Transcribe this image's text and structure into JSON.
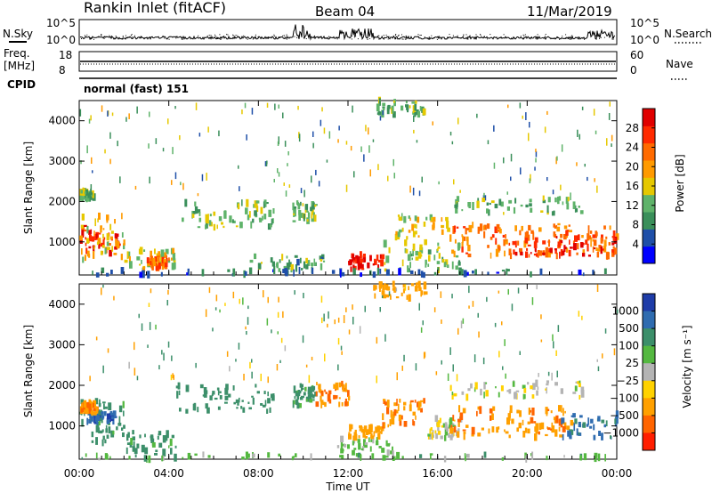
{
  "header": {
    "station": "Rankin Inlet (fitACF)",
    "beam": "Beam 04",
    "date": "11/Mar/2019"
  },
  "sky_panel": {
    "left_label": "N.Sky",
    "right_label": "N.Search",
    "left_ticks": [
      "10^5",
      "10^0"
    ],
    "right_ticks": [
      "10^5",
      "10^0"
    ]
  },
  "freq_panel": {
    "left_label_1": "Freq.",
    "left_label_2": "[MHz]",
    "right_label": "Nave",
    "left_ticks": [
      "18",
      "8"
    ],
    "right_ticks": [
      "60",
      "0"
    ]
  },
  "cpid_panel": {
    "label": "CPID",
    "value": "normal (fast) 151"
  },
  "colors": {
    "power_scale": [
      "#0000ff",
      "#1f4fa8",
      "#3a8f5a",
      "#5fb36a",
      "#e6c800",
      "#ff9a00",
      "#ff6a00",
      "#ff2a00",
      "#e00000"
    ],
    "velocity_scale": [
      "#1e3ca8",
      "#2f6cb0",
      "#3c8f6a",
      "#54b840",
      "#b4b4b4",
      "#ffd200",
      "#ffa000",
      "#ff6400",
      "#ff1e00"
    ]
  },
  "chart_data": [
    {
      "type": "heatmap",
      "quantity": "Power",
      "ylabel": "Slant Range [km]",
      "ylim": [
        180,
        4500
      ],
      "yticks": [
        "1000",
        "2000",
        "3000",
        "4000"
      ],
      "xlim": [
        "00:00",
        "24:00"
      ],
      "colorbar_label": "Power [dB]",
      "colorbar_ticks": [
        "4",
        "8",
        "12",
        "16",
        "20",
        "24",
        "28"
      ],
      "colorbar_range": [
        0,
        32
      ],
      "regions": [
        {
          "t0": 0.0,
          "t1": 1.8,
          "r0": 700,
          "r1": 1400,
          "level": 28
        },
        {
          "t0": 0.0,
          "t1": 2.0,
          "r0": 550,
          "r1": 1650,
          "level": 17
        },
        {
          "t0": 2.0,
          "t1": 4.3,
          "r0": 300,
          "r1": 800,
          "level": 15
        },
        {
          "t0": 3.0,
          "t1": 4.0,
          "r0": 350,
          "r1": 600,
          "level": 24
        },
        {
          "t0": 4.3,
          "t1": 8.7,
          "r0": 1350,
          "r1": 2000,
          "level": 13
        },
        {
          "t0": 9.5,
          "t1": 10.5,
          "r0": 1500,
          "r1": 2000,
          "level": 12
        },
        {
          "t0": 7.5,
          "t1": 11.0,
          "r0": 300,
          "r1": 650,
          "level": 11
        },
        {
          "t0": 12.0,
          "t1": 13.5,
          "r0": 300,
          "r1": 680,
          "level": 29
        },
        {
          "t0": 13.5,
          "t1": 17.0,
          "r0": 300,
          "r1": 1000,
          "level": 13
        },
        {
          "t0": 14.0,
          "t1": 16.5,
          "r0": 1050,
          "r1": 1650,
          "level": 16
        },
        {
          "t0": 16.5,
          "t1": 24.0,
          "r0": 650,
          "r1": 1450,
          "level": 22
        },
        {
          "t0": 18.5,
          "t1": 24.0,
          "r0": 650,
          "r1": 1150,
          "level": 27
        },
        {
          "t0": 16.5,
          "t1": 22.5,
          "r0": 1700,
          "r1": 2100,
          "level": 11
        },
        {
          "t0": 0.0,
          "t1": 24.0,
          "r0": 180,
          "r1": 300,
          "level": 6
        },
        {
          "t0": 0.0,
          "t1": 0.6,
          "r0": 2050,
          "r1": 2300,
          "level": 12
        },
        {
          "t0": 13.0,
          "t1": 15.5,
          "r0": 4150,
          "r1": 4500,
          "level": 12
        }
      ]
    },
    {
      "type": "heatmap",
      "quantity": "Velocity",
      "ylabel": "Slant Range [km]",
      "ylim": [
        180,
        4500
      ],
      "yticks": [
        "1000",
        "2000",
        "3000",
        "4000"
      ],
      "xlim": [
        "00:00",
        "24:00"
      ],
      "xticks": [
        "00:00",
        "04:00",
        "08:00",
        "12:00",
        "16:00",
        "20:00",
        "00:00"
      ],
      "xlabel": "Time UT",
      "colorbar_label": "Velocity [m s⁻¹]",
      "colorbar_ticks": [
        "1000",
        "500",
        "100",
        "25",
        "−25",
        "−100",
        "−500",
        "−1000"
      ],
      "regions": [
        {
          "t0": 0.0,
          "t1": 2.0,
          "r0": 550,
          "r1": 1650,
          "v": 150
        },
        {
          "t0": 0.3,
          "t1": 1.6,
          "r0": 1100,
          "r1": 1350,
          "v": 800
        },
        {
          "t0": 0.0,
          "t1": 0.8,
          "r0": 1300,
          "r1": 1600,
          "v": -500
        },
        {
          "t0": 2.0,
          "t1": 4.3,
          "r0": 300,
          "r1": 850,
          "v": 150
        },
        {
          "t0": 4.3,
          "t1": 8.7,
          "r0": 1350,
          "r1": 2000,
          "v": 200
        },
        {
          "t0": 9.5,
          "t1": 10.5,
          "r0": 1500,
          "r1": 2000,
          "v": 150
        },
        {
          "t0": 10.5,
          "t1": 12.0,
          "r0": 1500,
          "r1": 2050,
          "v": -500
        },
        {
          "t0": 11.5,
          "t1": 14.0,
          "r0": 200,
          "r1": 700,
          "v": 50
        },
        {
          "t0": 12.0,
          "t1": 13.5,
          "r0": 700,
          "r1": 1000,
          "v": -200
        },
        {
          "t0": 13.5,
          "t1": 15.5,
          "r0": 1000,
          "r1": 1650,
          "v": -500
        },
        {
          "t0": 15.5,
          "t1": 17.0,
          "r0": 700,
          "r1": 1200,
          "v": 0
        },
        {
          "t0": 16.5,
          "t1": 22.5,
          "r0": 1700,
          "r1": 2100,
          "v": 0
        },
        {
          "t0": 16.5,
          "t1": 22.0,
          "r0": 700,
          "r1": 1450,
          "v": -400
        },
        {
          "t0": 21.5,
          "t1": 24.0,
          "r0": 700,
          "r1": 1300,
          "v": 600
        },
        {
          "t0": 0.0,
          "t1": 24.0,
          "r0": 180,
          "r1": 300,
          "v": 60
        },
        {
          "t0": 13.0,
          "t1": 15.5,
          "r0": 4150,
          "r1": 4500,
          "v": -300
        }
      ]
    }
  ]
}
